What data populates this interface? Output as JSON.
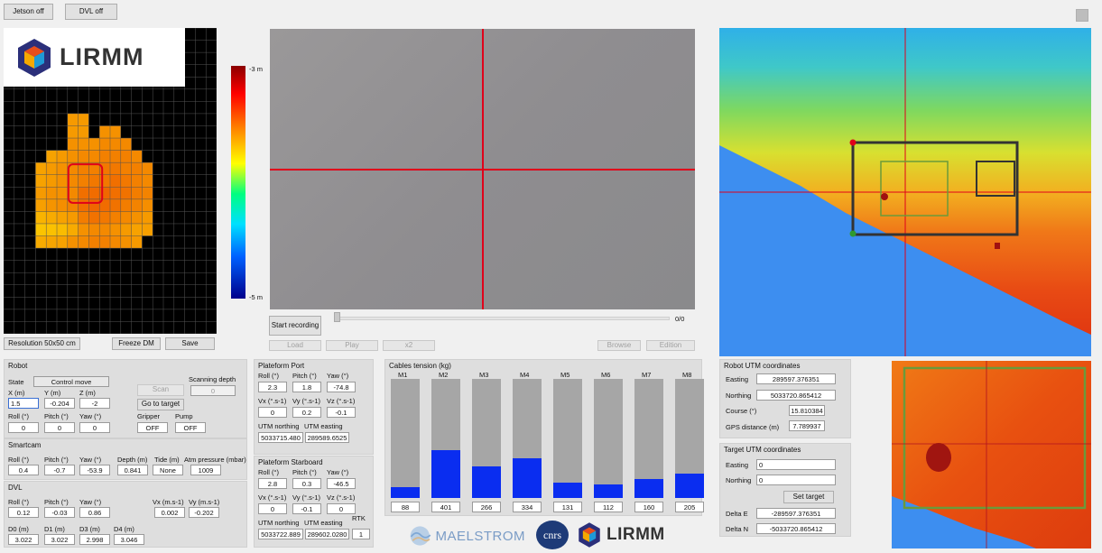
{
  "top_buttons": {
    "jetson": "Jetson off",
    "dvl": "DVL off"
  },
  "logo": {
    "text": "LIRMM"
  },
  "depth_map": {
    "colorbar_top": "-3 m",
    "colorbar_bottom": "-5 m",
    "resolution_label": "Resolution 50x50 cm",
    "freeze_label": "Freeze DM",
    "save_label": "Save",
    "cols": 20,
    "rows": 25,
    "filled": [
      [
        7,
        6,
        0.45
      ],
      [
        7,
        7,
        0.45
      ],
      [
        8,
        6,
        0.45
      ],
      [
        8,
        7,
        0.45
      ],
      [
        8,
        9,
        0.5
      ],
      [
        8,
        10,
        0.5
      ],
      [
        9,
        6,
        0.5
      ],
      [
        9,
        7,
        0.5
      ],
      [
        9,
        8,
        0.5
      ],
      [
        9,
        9,
        0.55
      ],
      [
        9,
        10,
        0.55
      ],
      [
        9,
        11,
        0.55
      ],
      [
        10,
        4,
        0.4
      ],
      [
        10,
        5,
        0.45
      ],
      [
        10,
        6,
        0.5
      ],
      [
        10,
        7,
        0.55
      ],
      [
        10,
        8,
        0.55
      ],
      [
        10,
        9,
        0.6
      ],
      [
        10,
        10,
        0.6
      ],
      [
        10,
        11,
        0.6
      ],
      [
        10,
        12,
        0.55
      ],
      [
        11,
        3,
        0.4
      ],
      [
        11,
        4,
        0.45
      ],
      [
        11,
        5,
        0.5
      ],
      [
        11,
        6,
        0.55
      ],
      [
        11,
        7,
        0.6
      ],
      [
        11,
        8,
        0.6
      ],
      [
        11,
        9,
        0.65
      ],
      [
        11,
        10,
        0.65
      ],
      [
        11,
        11,
        0.6
      ],
      [
        11,
        12,
        0.6
      ],
      [
        11,
        13,
        0.55
      ],
      [
        12,
        3,
        0.4
      ],
      [
        12,
        4,
        0.45
      ],
      [
        12,
        5,
        0.5
      ],
      [
        12,
        6,
        0.55
      ],
      [
        12,
        7,
        0.6
      ],
      [
        12,
        8,
        0.65
      ],
      [
        12,
        9,
        0.65
      ],
      [
        12,
        10,
        0.7
      ],
      [
        12,
        11,
        0.65
      ],
      [
        12,
        12,
        0.6
      ],
      [
        12,
        13,
        0.55
      ],
      [
        13,
        3,
        0.45
      ],
      [
        13,
        4,
        0.5
      ],
      [
        13,
        5,
        0.5
      ],
      [
        13,
        6,
        0.55
      ],
      [
        13,
        7,
        0.7
      ],
      [
        13,
        8,
        0.72
      ],
      [
        13,
        9,
        0.75
      ],
      [
        13,
        10,
        0.7
      ],
      [
        13,
        11,
        0.68
      ],
      [
        13,
        12,
        0.62
      ],
      [
        13,
        13,
        0.58
      ],
      [
        14,
        3,
        0.42
      ],
      [
        14,
        4,
        0.48
      ],
      [
        14,
        5,
        0.52
      ],
      [
        14,
        6,
        0.58
      ],
      [
        14,
        7,
        0.7
      ],
      [
        14,
        8,
        0.75
      ],
      [
        14,
        9,
        0.72
      ],
      [
        14,
        10,
        0.68
      ],
      [
        14,
        11,
        0.62
      ],
      [
        14,
        12,
        0.58
      ],
      [
        14,
        13,
        0.52
      ],
      [
        15,
        3,
        0.3
      ],
      [
        15,
        4,
        0.35
      ],
      [
        15,
        5,
        0.4
      ],
      [
        15,
        6,
        0.45
      ],
      [
        15,
        7,
        0.62
      ],
      [
        15,
        8,
        0.68
      ],
      [
        15,
        9,
        0.65
      ],
      [
        15,
        10,
        0.6
      ],
      [
        15,
        11,
        0.55
      ],
      [
        15,
        12,
        0.5
      ],
      [
        15,
        13,
        0.45
      ],
      [
        16,
        3,
        0.2
      ],
      [
        16,
        4,
        0.22
      ],
      [
        16,
        5,
        0.25
      ],
      [
        16,
        6,
        0.35
      ],
      [
        16,
        7,
        0.5
      ],
      [
        16,
        8,
        0.55
      ],
      [
        16,
        9,
        0.55
      ],
      [
        16,
        10,
        0.5
      ],
      [
        16,
        11,
        0.45
      ],
      [
        16,
        12,
        0.4
      ],
      [
        16,
        13,
        0.42
      ],
      [
        17,
        3,
        0.35
      ],
      [
        17,
        4,
        0.38
      ],
      [
        17,
        5,
        0.4
      ],
      [
        17,
        6,
        0.5
      ],
      [
        17,
        7,
        0.55
      ],
      [
        17,
        8,
        0.6
      ],
      [
        17,
        9,
        0.6
      ],
      [
        17,
        10,
        0.55
      ],
      [
        17,
        11,
        0.5
      ],
      [
        17,
        12,
        0.45
      ]
    ]
  },
  "video": {
    "start_recording": "Start recording",
    "load": "Load",
    "play": "Play",
    "speed": "x2",
    "browse": "Browse",
    "edition": "Edition",
    "counter": "0/0"
  },
  "robot": {
    "title": "Robot",
    "state_label": "State",
    "state_value": "Control move",
    "scanning_depth_label": "Scanning depth",
    "scanning_depth_value": "0",
    "scan_label": "Scan",
    "go_to_target_label": "Go to target",
    "x_label": "X (m)",
    "x_value": "1.5",
    "y_label": "Y (m)",
    "y_value": "-0.204",
    "z_label": "Z (m)",
    "z_value": "-2",
    "roll_label": "Roll (°)",
    "roll_value": "0",
    "pitch_label": "Pitch (°)",
    "pitch_value": "0",
    "yaw_label": "Yaw (°)",
    "yaw_value": "0",
    "gripper_label": "Gripper",
    "gripper_value": "OFF",
    "pump_label": "Pump",
    "pump_value": "OFF"
  },
  "smartcam": {
    "title": "Smartcam",
    "roll_label": "Roll (°)",
    "roll_value": "0.4",
    "pitch_label": "Pitch (°)",
    "pitch_value": "-0.7",
    "yaw_label": "Yaw (°)",
    "yaw_value": "-53.9",
    "depth_label": "Depth (m)",
    "depth_value": "0.841",
    "tide_label": "Tide (m)",
    "tide_value": "None",
    "atm_label": "Atm pressure (mbar)",
    "atm_value": "1009"
  },
  "dvl": {
    "title": "DVL",
    "roll_label": "Roll (°)",
    "roll_value": "0.12",
    "pitch_label": "Pitch (°)",
    "pitch_value": "-0.03",
    "yaw_label": "Yaw (°)",
    "yaw_value": "0.86",
    "vx_label": "Vx (m.s-1)",
    "vx_value": "0.002",
    "vy_label": "Vy (m.s-1)",
    "vy_value": "-0.202",
    "d0_label": "D0 (m)",
    "d0_value": "3.022",
    "d1_label": "D1 (m)",
    "d1_value": "3.022",
    "d3_label": "D3 (m)",
    "d3_value": "2.998",
    "d4_label": "D4 (m)",
    "d4_value": "3.046"
  },
  "platform_port": {
    "title": "Plateform Port",
    "roll_label": "Roll (°)",
    "roll_value": "2.3",
    "pitch_label": "Pitch (°)",
    "pitch_value": "1.8",
    "yaw_label": "Yaw (°)",
    "yaw_value": "-74.8",
    "vx_label": "Vx (°.s-1)",
    "vx_value": "0",
    "vy_label": "Vy (°.s-1)",
    "vy_value": "0.2",
    "vz_label": "Vz (°.s-1)",
    "vz_value": "-0.1",
    "utm_n_label": "UTM northing",
    "utm_n_value": "5033715.480",
    "utm_e_label": "UTM easting",
    "utm_e_value": "289589.6525"
  },
  "platform_starboard": {
    "title": "Plateform Starboard",
    "roll_label": "Roll (°)",
    "roll_value": "2.8",
    "pitch_label": "Pitch (°)",
    "pitch_value": "0.3",
    "yaw_label": "Yaw (°)",
    "yaw_value": "-46.5",
    "vx_label": "Vx (°.s-1)",
    "vx_value": "0",
    "vy_label": "Vy (°.s-1)",
    "vy_value": "-0.1",
    "vz_label": "Vz (°.s-1)",
    "vz_value": "0",
    "utm_n_label": "UTM northing",
    "utm_n_value": "5033722.889",
    "utm_e_label": "UTM easting",
    "utm_e_value": "289602.0280",
    "rtk_label": "RTK",
    "rtk_value": "1"
  },
  "cables": {
    "title": "Cables tension (kg)",
    "max": 1000,
    "items": [
      {
        "name": "M1",
        "value": 88
      },
      {
        "name": "M2",
        "value": 401
      },
      {
        "name": "M3",
        "value": 266
      },
      {
        "name": "M4",
        "value": 334
      },
      {
        "name": "M5",
        "value": 131
      },
      {
        "name": "M6",
        "value": 112
      },
      {
        "name": "M7",
        "value": 160
      },
      {
        "name": "M8",
        "value": 205
      }
    ]
  },
  "robot_utm": {
    "title": "Robot UTM coordinates",
    "easting_label": "Easting",
    "easting_value": "289597.376351",
    "northing_label": "Northing",
    "northing_value": "5033720.865412",
    "course_label": "Course (°)",
    "course_value": "15.810384",
    "gps_label": "GPS distance (m)",
    "gps_value": "7.789937"
  },
  "target_utm": {
    "title": "Target UTM coordinates",
    "easting_label": "Easting",
    "easting_value": "0",
    "northing_label": "Northing",
    "northing_value": "0",
    "set_target_label": "Set target",
    "delta_e_label": "Delta E",
    "delta_e_value": "-289597.376351",
    "delta_n_label": "Delta N",
    "delta_n_value": "-5033720.865412"
  },
  "footer": {
    "maelstrom": "MAELSTROM",
    "cnrs": "cnrs",
    "lirmm": "LIRMM"
  },
  "colors": {
    "accent_red": "#e0001a",
    "bar_blue": "#0a2df0",
    "bar_gray": "#a6a6a6",
    "map_green": "#6b9a3a",
    "water_blue": "#3d8ef0"
  }
}
